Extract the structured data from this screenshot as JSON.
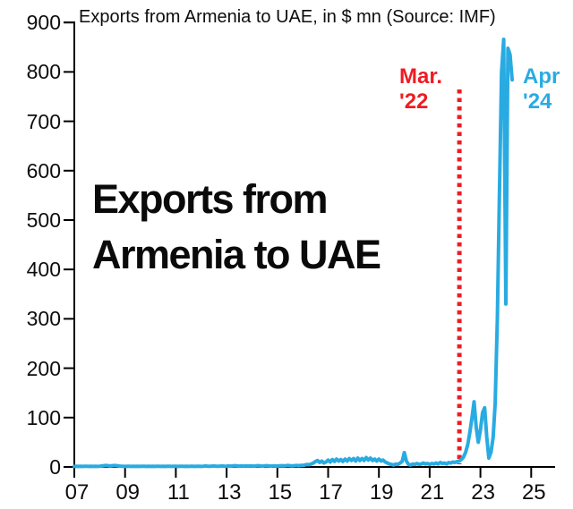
{
  "chart_data": {
    "type": "line",
    "title": "Exports from Armenia to UAE, in $ mn (Source: IMF)",
    "center_label": {
      "line1": "Exports from",
      "line2": "Armenia to UAE"
    },
    "xlabel": "",
    "ylabel": "",
    "grid": false,
    "legend_position": "none",
    "x_axis": {
      "tick_labels": [
        "07",
        "09",
        "11",
        "13",
        "15",
        "17",
        "19",
        "21",
        "23",
        "25"
      ],
      "tick_years": [
        2007,
        2009,
        2011,
        2013,
        2015,
        2017,
        2019,
        2021,
        2023,
        2025
      ],
      "range_years": [
        2007,
        2025.9
      ]
    },
    "y_axis": {
      "ticks": [
        0,
        100,
        200,
        300,
        400,
        500,
        600,
        700,
        800,
        900
      ],
      "range": [
        0,
        900
      ]
    },
    "series": [
      {
        "name": "Exports from Armenia to UAE, $ mn (monthly)",
        "start_year": 2007,
        "points_per_year": 12,
        "end_label": "Apr '24",
        "values": [
          1,
          1.2,
          1,
          1.5,
          1,
          1.2,
          1.5,
          1,
          1.3,
          1,
          1.2,
          1,
          1.5,
          2,
          2.5,
          3,
          2.5,
          2,
          2.5,
          3,
          2.5,
          2,
          1.5,
          1.5,
          1,
          1.2,
          1.5,
          1,
          1.2,
          1,
          1.3,
          1,
          1.2,
          1.5,
          1,
          1.2,
          1,
          1.3,
          1,
          1.5,
          1.2,
          1,
          1.4,
          1,
          1.2,
          1.5,
          1,
          1.3,
          1.2,
          1,
          1.5,
          1.2,
          1,
          1.4,
          1,
          1.3,
          1.5,
          1,
          1.2,
          1.4,
          1,
          1.5,
          2,
          1.5,
          1.2,
          1.6,
          2,
          1.5,
          1.2,
          1.6,
          2,
          1.5,
          1.6,
          2,
          1.6,
          2.2,
          2.5,
          2,
          1.6,
          2.1,
          1.7,
          2.2,
          1.8,
          2,
          2,
          1.6,
          2.2,
          2.5,
          2,
          1.7,
          2.2,
          2.5,
          2,
          1.7,
          2.1,
          2,
          1.8,
          2.2,
          2.6,
          2.2,
          2.6,
          3,
          2.5,
          2.2,
          2.6,
          3,
          2.6,
          3,
          3,
          4,
          5,
          4.5,
          6,
          8,
          11,
          13,
          9,
          12,
          8,
          10,
          14,
          10,
          15,
          11,
          16,
          12,
          15,
          11,
          16,
          12,
          17,
          13,
          17,
          12,
          18,
          13,
          17,
          13,
          19,
          14,
          18,
          13,
          16,
          12,
          16,
          12,
          14,
          10,
          8,
          6,
          5,
          4,
          6,
          5,
          8,
          11,
          29,
          12,
          5,
          4,
          6,
          5,
          7,
          5,
          6,
          8,
          6,
          7,
          5,
          7,
          6,
          8,
          6,
          9,
          7,
          8,
          6,
          9,
          8,
          10,
          9,
          11,
          12,
          15,
          20,
          30,
          45,
          70,
          100,
          132,
          80,
          50,
          75,
          110,
          120,
          60,
          18,
          30,
          60,
          130,
          300,
          560,
          800,
          866,
          330,
          848,
          835,
          784
        ]
      }
    ],
    "annotations": [
      {
        "id": "mar-22",
        "line1": "Mar.",
        "line2": "'22",
        "color": "#ed1c24",
        "marker_year": 2022.17
      },
      {
        "id": "apr-24",
        "line1": "Apr",
        "line2": "'24",
        "color": "#29abe2"
      }
    ],
    "colors": {
      "line": "#29abe2",
      "marker": "#ed1c24",
      "axis": "#000000",
      "text": "#0d0d0d",
      "background": "#ffffff"
    }
  }
}
